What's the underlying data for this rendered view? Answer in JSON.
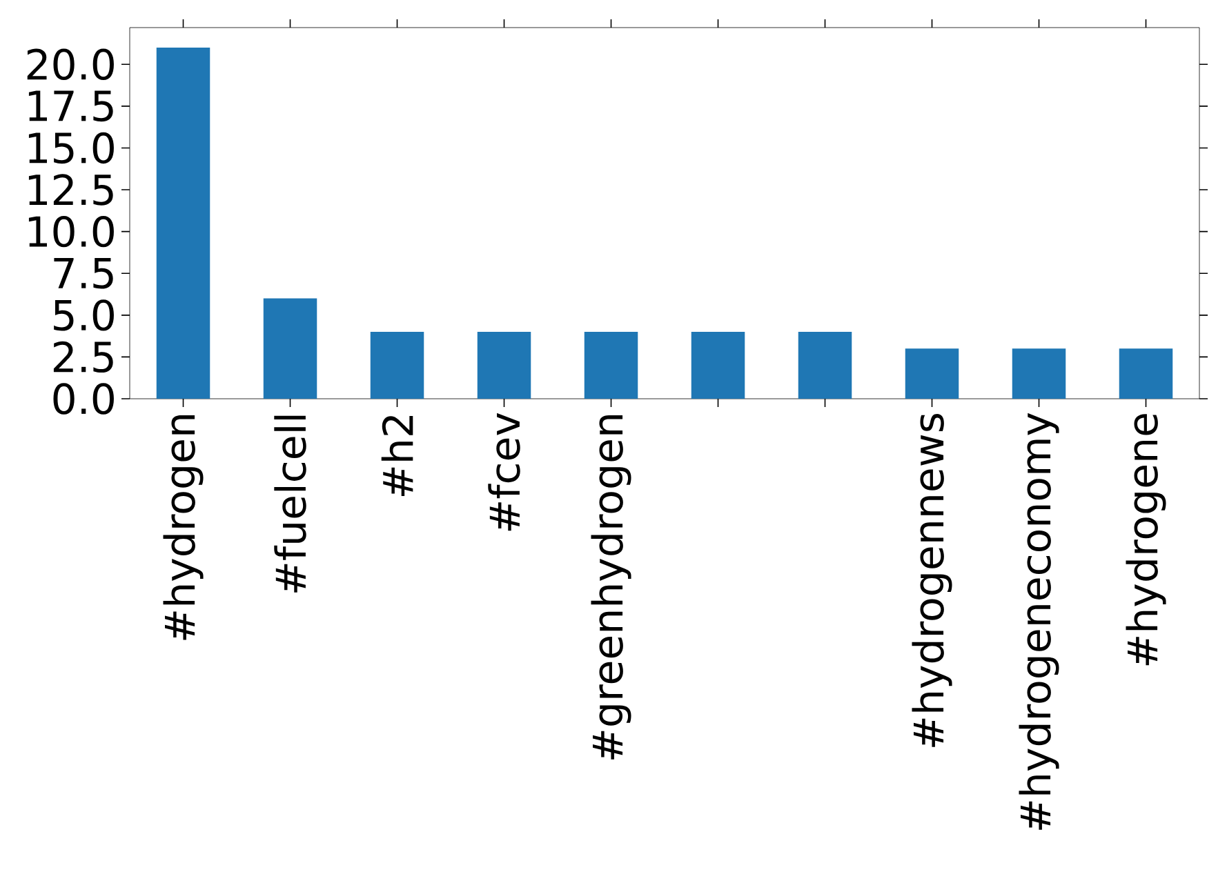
{
  "chart_data": {
    "type": "bar",
    "categories": [
      "#hydrogen",
      "#fuelcell",
      "#h2",
      "#fcev",
      "#greenhydrogen",
      null,
      null,
      "#hydrogennews",
      "#hydrogeneconomy",
      "#hydrogene"
    ],
    "values": [
      21,
      6,
      4,
      4,
      4,
      4,
      4,
      3,
      3,
      3
    ],
    "color": "#1f77b4",
    "ylim": [
      0,
      22.2
    ],
    "yticks": [
      {
        "value": 0,
        "label": "0.0"
      },
      {
        "value": 2.5,
        "label": "2.5"
      },
      {
        "value": 5,
        "label": "5.0"
      },
      {
        "value": 7.5,
        "label": "7.5"
      },
      {
        "value": 10,
        "label": "10.0"
      },
      {
        "value": 12.5,
        "label": "12.5"
      },
      {
        "value": 15,
        "label": "15.0"
      },
      {
        "value": 17.5,
        "label": "17.5"
      },
      {
        "value": 20,
        "label": "20.0"
      }
    ]
  }
}
